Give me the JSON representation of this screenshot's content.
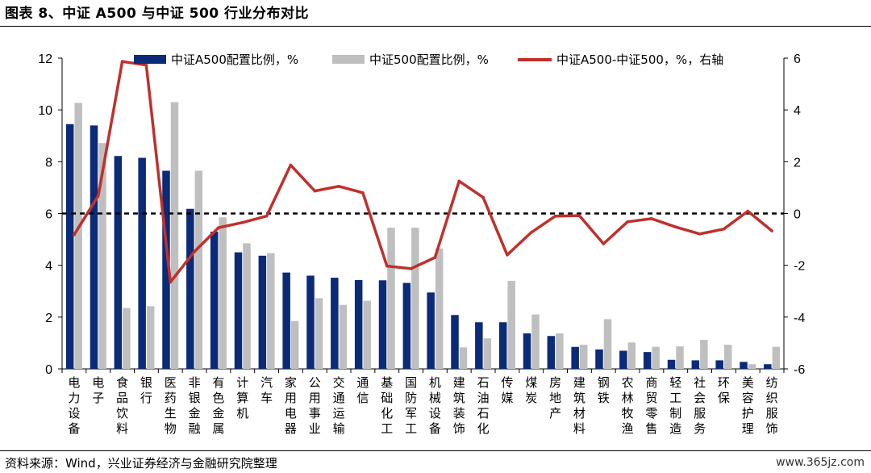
{
  "title": "图表 8、中证 A500 与中证 500 行业分布对比",
  "source": "资料来源：Wind，兴业证券经济与金融研究院整理",
  "watermark": "www.365jz.com",
  "colors": {
    "a500": "#0b2a78",
    "zz500": "#bfbfbf",
    "diff": "#c0302c",
    "zero_line": "#000000"
  },
  "chart_data": {
    "type": "bar",
    "categories": [
      "电力设备",
      "电子",
      "食品饮料",
      "银行",
      "医药生物",
      "非银金融",
      "有色金属",
      "计算机",
      "汽车",
      "家用电器",
      "公用事业",
      "交通运输",
      "通信",
      "基础化工",
      "国防军工",
      "机械设备",
      "建筑装饰",
      "石油石化",
      "传媒",
      "煤炭",
      "房地产",
      "建筑材料",
      "钢铁",
      "农林牧渔",
      "商贸零售",
      "轻工制造",
      "社会服务",
      "环保",
      "美容护理",
      "纺织服饰"
    ],
    "series": [
      {
        "name": "中证A500配置比例，%",
        "type": "bar",
        "axis": "left",
        "values": [
          9.45,
          9.4,
          8.22,
          8.15,
          7.65,
          6.18,
          5.3,
          4.5,
          4.37,
          3.72,
          3.6,
          3.52,
          3.43,
          3.42,
          3.32,
          2.95,
          2.08,
          1.8,
          1.8,
          1.37,
          1.27,
          0.85,
          0.75,
          0.7,
          0.65,
          0.35,
          0.33,
          0.33,
          0.27,
          0.18
        ]
      },
      {
        "name": "中证500配置比例，%",
        "type": "bar",
        "axis": "left",
        "values": [
          10.27,
          8.72,
          2.35,
          2.42,
          10.3,
          7.65,
          5.85,
          4.85,
          4.47,
          1.85,
          2.73,
          2.47,
          2.63,
          5.45,
          5.45,
          4.65,
          0.83,
          1.18,
          3.4,
          2.1,
          1.37,
          0.93,
          1.92,
          1.02,
          0.85,
          0.87,
          1.12,
          0.93,
          0.18,
          0.85
        ]
      },
      {
        "name": "中证A500-中证500，%，右轴",
        "type": "line",
        "axis": "right",
        "values": [
          -0.82,
          0.68,
          5.87,
          5.73,
          -2.65,
          -1.47,
          -0.55,
          -0.35,
          -0.1,
          1.87,
          0.87,
          1.05,
          0.8,
          -2.03,
          -2.13,
          -1.7,
          1.25,
          0.62,
          -1.6,
          -0.73,
          -0.1,
          -0.08,
          -1.17,
          -0.32,
          -0.2,
          -0.52,
          -0.79,
          -0.6,
          0.09,
          -0.67
        ]
      }
    ],
    "ylim_left": [
      0,
      12
    ],
    "ylim_right": [
      -6,
      6
    ],
    "yticks_left": [
      "0",
      "2",
      "4",
      "6",
      "8",
      "10",
      "12"
    ],
    "yticks_right": [
      "-6",
      "-4",
      "-2",
      "0",
      "2",
      "4",
      "6"
    ],
    "reference_line": {
      "axis": "right",
      "value": 0,
      "style": "dashed"
    },
    "legend_position": "top",
    "grid": false
  }
}
